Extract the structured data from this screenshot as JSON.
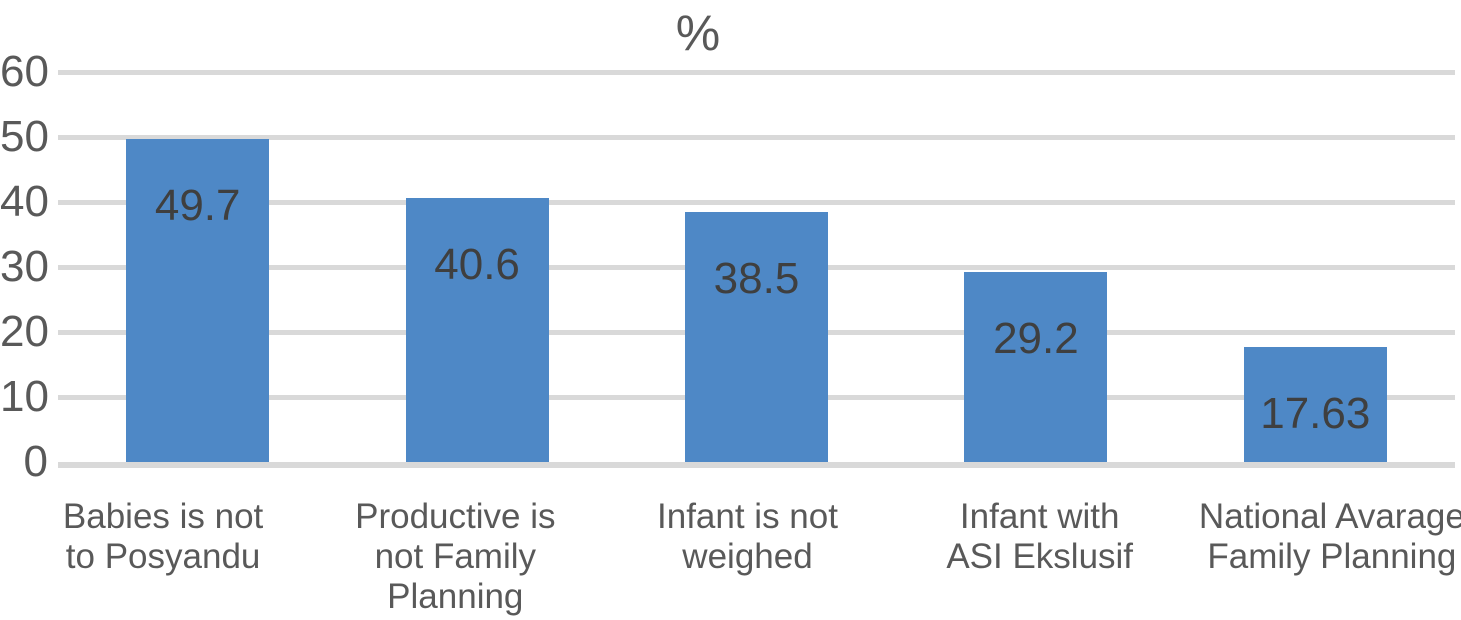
{
  "chart_data": {
    "type": "bar",
    "title": "%",
    "categories": [
      "Babies is not to Posyandu",
      "Productive is not Family Planning",
      "Infant is not weighed",
      "Infant with ASI Ekslusif",
      "National Avarage Family Planning"
    ],
    "category_lines": [
      [
        "Babies is not",
        "to Posyandu"
      ],
      [
        "Productive is",
        "not Family",
        "Planning"
      ],
      [
        "Infant is not",
        "weighed"
      ],
      [
        "Infant with",
        "ASI Ekslusif"
      ],
      [
        "National Avarage",
        "Family Planning"
      ]
    ],
    "values": [
      49.7,
      40.6,
      38.5,
      29.2,
      17.63
    ],
    "value_labels": [
      "49.7",
      "40.6",
      "38.5",
      "29.2",
      "17.63"
    ],
    "xlabel": "",
    "ylabel": "",
    "y_ticks": [
      0,
      10,
      20,
      30,
      40,
      50,
      60
    ],
    "ylim": [
      0,
      60
    ],
    "grid": true,
    "legend_position": "none",
    "bar_color": "#4e88c6",
    "gridline_color": "#d9d9d9",
    "axis_text_color": "#595959",
    "value_label_color": "#3f3f3f",
    "title_color": "#595959"
  }
}
